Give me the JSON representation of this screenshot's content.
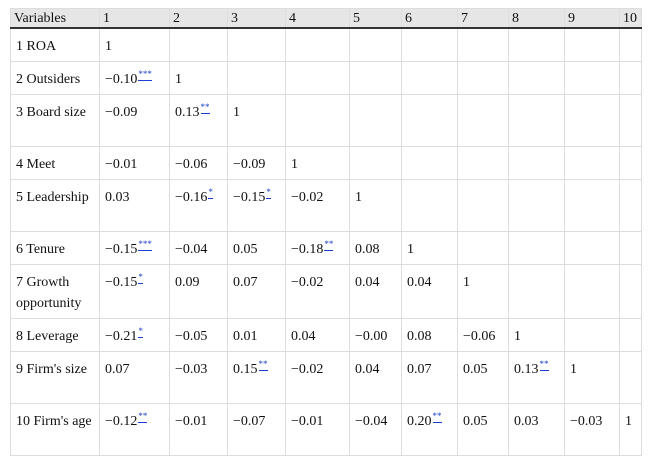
{
  "header": [
    "Variables",
    "1",
    "2",
    "3",
    "4",
    "5",
    "6",
    "7",
    "8",
    "9",
    "10"
  ],
  "rows": [
    {
      "label": "1 ROA",
      "cells": [
        [
          "1",
          ""
        ],
        [
          "",
          ""
        ],
        [
          "",
          ""
        ],
        [
          "",
          ""
        ],
        [
          "",
          ""
        ],
        [
          "",
          ""
        ],
        [
          "",
          ""
        ],
        [
          "",
          ""
        ],
        [
          "",
          ""
        ],
        [
          "",
          ""
        ]
      ]
    },
    {
      "label": "2 Outsiders",
      "cells": [
        [
          "−0.10",
          "***"
        ],
        [
          "1",
          ""
        ],
        [
          "",
          ""
        ],
        [
          "",
          ""
        ],
        [
          "",
          ""
        ],
        [
          "",
          ""
        ],
        [
          "",
          ""
        ],
        [
          "",
          ""
        ],
        [
          "",
          ""
        ],
        [
          "",
          ""
        ]
      ]
    },
    {
      "label": "3 Board size",
      "cells": [
        [
          "−0.09",
          ""
        ],
        [
          "0.13",
          "**"
        ],
        [
          "1",
          ""
        ],
        [
          "",
          ""
        ],
        [
          "",
          ""
        ],
        [
          "",
          ""
        ],
        [
          "",
          ""
        ],
        [
          "",
          ""
        ],
        [
          "",
          ""
        ],
        [
          "",
          ""
        ]
      ]
    },
    {
      "label": "4 Meet",
      "cells": [
        [
          "−0.01",
          ""
        ],
        [
          "−0.06",
          ""
        ],
        [
          "−0.09",
          ""
        ],
        [
          "1",
          ""
        ],
        [
          "",
          ""
        ],
        [
          "",
          ""
        ],
        [
          "",
          ""
        ],
        [
          "",
          ""
        ],
        [
          "",
          ""
        ],
        [
          "",
          ""
        ]
      ]
    },
    {
      "label": "5 Leadership",
      "cells": [
        [
          "0.03",
          ""
        ],
        [
          "−0.16",
          "*"
        ],
        [
          "−0.15",
          "*"
        ],
        [
          "−0.02",
          ""
        ],
        [
          "1",
          ""
        ],
        [
          "",
          ""
        ],
        [
          "",
          ""
        ],
        [
          "",
          ""
        ],
        [
          "",
          ""
        ],
        [
          "",
          ""
        ]
      ]
    },
    {
      "label": "6 Tenure",
      "cells": [
        [
          "−0.15",
          "***"
        ],
        [
          "−0.04",
          ""
        ],
        [
          "0.05",
          ""
        ],
        [
          "−0.18",
          "**"
        ],
        [
          "0.08",
          ""
        ],
        [
          "1",
          ""
        ],
        [
          "",
          ""
        ],
        [
          "",
          ""
        ],
        [
          "",
          ""
        ],
        [
          "",
          ""
        ]
      ]
    },
    {
      "label": "7 Growth opportunity",
      "cells": [
        [
          "−0.15",
          "*"
        ],
        [
          "0.09",
          ""
        ],
        [
          "0.07",
          ""
        ],
        [
          "−0.02",
          ""
        ],
        [
          "0.04",
          ""
        ],
        [
          "0.04",
          ""
        ],
        [
          "1",
          ""
        ],
        [
          "",
          ""
        ],
        [
          "",
          ""
        ],
        [
          "",
          ""
        ]
      ]
    },
    {
      "label": "8 Leverage",
      "cells": [
        [
          "−0.21",
          "*"
        ],
        [
          "−0.05",
          ""
        ],
        [
          "0.01",
          ""
        ],
        [
          "0.04",
          ""
        ],
        [
          "−0.00",
          ""
        ],
        [
          "0.08",
          ""
        ],
        [
          "−0.06",
          ""
        ],
        [
          "1",
          ""
        ],
        [
          "",
          ""
        ],
        [
          "",
          ""
        ]
      ]
    },
    {
      "label": "9 Firm's size",
      "cells": [
        [
          "0.07",
          ""
        ],
        [
          "−0.03",
          ""
        ],
        [
          "0.15",
          "**"
        ],
        [
          "−0.02",
          ""
        ],
        [
          "0.04",
          ""
        ],
        [
          "0.07",
          ""
        ],
        [
          "0.05",
          ""
        ],
        [
          "0.13",
          "**"
        ],
        [
          "1",
          ""
        ],
        [
          "",
          ""
        ]
      ]
    },
    {
      "label": "10 Firm's age",
      "cells": [
        [
          "−0.12",
          "**"
        ],
        [
          "−0.01",
          ""
        ],
        [
          "−0.07",
          ""
        ],
        [
          "−0.01",
          ""
        ],
        [
          "−0.04",
          ""
        ],
        [
          "0.20",
          "**"
        ],
        [
          "0.05",
          ""
        ],
        [
          "0.03",
          ""
        ],
        [
          "−0.03",
          ""
        ],
        [
          "1",
          ""
        ]
      ]
    }
  ]
}
